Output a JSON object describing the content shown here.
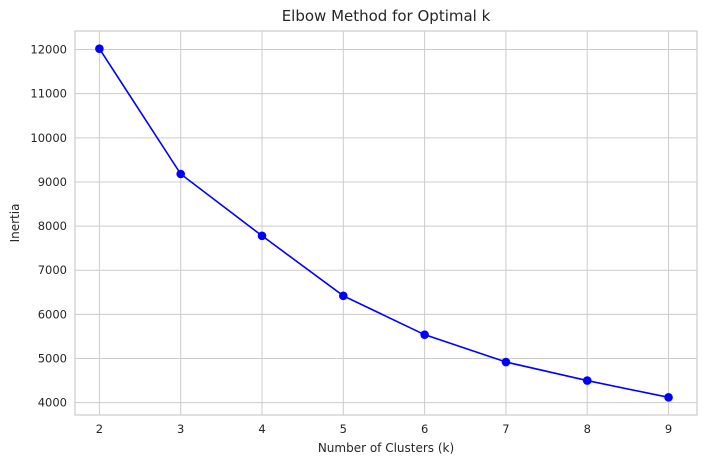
{
  "chart_data": {
    "type": "line",
    "title": "Elbow Method for Optimal k",
    "xlabel": "Number of Clusters (k)",
    "ylabel": "Inertia",
    "x": [
      2,
      3,
      4,
      5,
      6,
      7,
      8,
      9
    ],
    "series": [
      {
        "values": [
          12020,
          9180,
          7780,
          6420,
          5540,
          4920,
          4500,
          4120
        ],
        "color": "#0000ff",
        "marker": "circle"
      }
    ],
    "xlim": [
      1.7,
      9.35
    ],
    "ylim": [
      3720,
      12420
    ],
    "x_ticks": [
      2,
      3,
      4,
      5,
      6,
      7,
      8,
      9
    ],
    "y_ticks": [
      4000,
      5000,
      6000,
      7000,
      8000,
      9000,
      10000,
      11000,
      12000
    ],
    "grid": true,
    "legend": "none"
  }
}
